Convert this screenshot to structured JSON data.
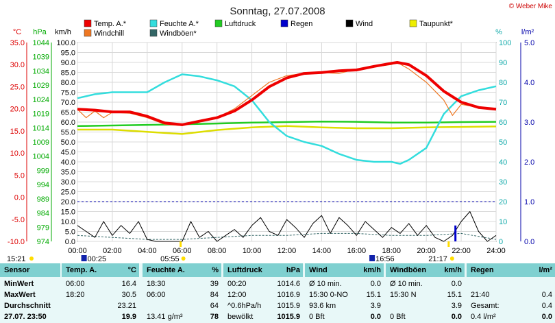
{
  "header": {
    "title": "Sonntag, 27.07.2008",
    "copyright": "© Weber Mike"
  },
  "legend": [
    {
      "label": "Temp. A.*",
      "color": "#ee0000"
    },
    {
      "label": "Feuchte A.*",
      "color": "#33dddd"
    },
    {
      "label": "Luftdruck",
      "color": "#22cc22"
    },
    {
      "label": "Regen",
      "color": "#0000cc"
    },
    {
      "label": "Wind",
      "color": "#000000"
    },
    {
      "label": "Taupunkt*",
      "color": "#eeee00"
    },
    {
      "label": "Windchill",
      "color": "#ee7722"
    },
    {
      "label": "Windböen*",
      "color": "#336666"
    }
  ],
  "axes": {
    "temp_unit": "°C",
    "press_unit": "hPa",
    "wind_unit": "km/h",
    "hum_unit": "%",
    "rain_unit": "l/m²",
    "temp_ticks": [
      "35.0",
      "30.0",
      "25.0",
      "20.0",
      "15.0",
      "10.0",
      "5.0",
      "0.0",
      "-5.0",
      "-10.0"
    ],
    "press_ticks": [
      "1044",
      "1039",
      "1034",
      "1029",
      "1024",
      "1019",
      "1014",
      "1009",
      "1004",
      "999",
      "994",
      "989",
      "984",
      "979",
      "974"
    ],
    "wind_ticks": [
      "100.0",
      "95.0",
      "90.0",
      "85.0",
      "80.0",
      "75.0",
      "70.0",
      "65.0",
      "60.0",
      "55.0",
      "50.0",
      "45.0",
      "40.0",
      "35.0",
      "30.0",
      "25.0",
      "20.0",
      "15.0",
      "10.0",
      "5.0",
      "0.0"
    ],
    "hum_ticks": [
      "100",
      "90",
      "80",
      "70",
      "60",
      "50",
      "40",
      "30",
      "20",
      "10",
      "0"
    ],
    "rain_ticks": [
      "5.0",
      "4.0",
      "3.0",
      "2.0",
      "1.0",
      "0.0"
    ],
    "time_ticks": [
      "00:00",
      "02:00",
      "04:00",
      "06:00",
      "08:00",
      "10:00",
      "12:00",
      "14:00",
      "16:00",
      "18:00",
      "20:00",
      "22:00",
      "24:00"
    ]
  },
  "sun": {
    "sunrise": "05:55",
    "sunset": "21:17",
    "moonset": "00:25",
    "moonrise": "16:56",
    "prev_sunset": "15:21"
  },
  "chart_data": {
    "type": "line",
    "x_unit": "hours",
    "xlim": [
      0,
      24
    ],
    "series": [
      {
        "name": "Temp. A.*",
        "axis": "temp",
        "ylim": [
          -10,
          35
        ],
        "x": [
          0,
          1,
          2,
          3,
          4,
          5,
          6,
          7,
          8,
          9,
          10,
          11,
          12,
          13,
          14,
          15,
          16,
          17,
          18,
          18.33,
          19,
          20,
          21,
          22,
          23,
          24
        ],
        "y": [
          19.9,
          19.7,
          19.3,
          19.3,
          18.3,
          16.8,
          16.4,
          17.2,
          18.0,
          19.5,
          22.0,
          25.0,
          27.0,
          28.0,
          28.2,
          28.6,
          28.8,
          29.6,
          30.3,
          30.5,
          30.0,
          27.5,
          24.0,
          21.5,
          20.3,
          19.9
        ]
      },
      {
        "name": "Windchill",
        "axis": "temp",
        "ylim": [
          -10,
          35
        ],
        "x": [
          0,
          0.5,
          1,
          1.5,
          2,
          3,
          4,
          5,
          6,
          7,
          8,
          9,
          10,
          11,
          12,
          13,
          14,
          15,
          16,
          17,
          18,
          18.33,
          19,
          20,
          21,
          21.5,
          22,
          23,
          24
        ],
        "y": [
          19.9,
          18.0,
          19.5,
          18.0,
          19.2,
          19.0,
          18.0,
          16.5,
          16.2,
          17.0,
          18.0,
          20.0,
          23.0,
          26.0,
          27.5,
          28.0,
          28.2,
          28.0,
          29.0,
          29.5,
          30.0,
          30.5,
          29.0,
          26.0,
          22.0,
          18.5,
          21.0,
          20.3,
          19.9
        ]
      },
      {
        "name": "Feuchte A.*",
        "axis": "hum",
        "ylim": [
          0,
          100
        ],
        "x": [
          0,
          1,
          2,
          3,
          4,
          5,
          6,
          7,
          8,
          9,
          10,
          11,
          12,
          13,
          14,
          15,
          16,
          17,
          18,
          18.5,
          19,
          20,
          21,
          22,
          23,
          24
        ],
        "y": [
          72,
          74,
          75,
          75,
          75,
          80,
          84,
          83,
          81,
          78,
          71,
          60,
          53,
          50,
          48,
          44,
          41,
          40,
          40,
          39,
          41,
          47,
          64,
          73,
          76,
          78
        ]
      },
      {
        "name": "Luftdruck",
        "axis": "press",
        "ylim": [
          974,
          1044
        ],
        "x": [
          0,
          2,
          4,
          6,
          8,
          10,
          12,
          14,
          16,
          18,
          20,
          22,
          24
        ],
        "y": [
          1014.6,
          1014.8,
          1015.0,
          1015.2,
          1015.5,
          1015.8,
          1016.0,
          1016.2,
          1016.1,
          1015.8,
          1015.8,
          1016.0,
          1016.1
        ]
      },
      {
        "name": "Taupunkt*",
        "axis": "temp",
        "ylim": [
          -10,
          35
        ],
        "x": [
          0,
          2,
          4,
          6,
          8,
          10,
          12,
          14,
          16,
          18,
          20,
          22,
          24
        ],
        "y": [
          15.3,
          15.3,
          14.8,
          14.3,
          15.2,
          15.8,
          16.1,
          15.8,
          15.6,
          15.6,
          15.8,
          15.9,
          16.0
        ]
      },
      {
        "name": "Wind",
        "axis": "wind",
        "ylim": [
          0,
          100
        ],
        "x": [
          0,
          0.5,
          1,
          1.5,
          2,
          2.5,
          3,
          3.5,
          4,
          4.5,
          5,
          5.5,
          6,
          6.5,
          7,
          7.5,
          8,
          8.5,
          9,
          9.5,
          10,
          10.5,
          11,
          11.5,
          12,
          12.5,
          13,
          13.5,
          14,
          14.5,
          15,
          15.5,
          16,
          16.5,
          17,
          17.5,
          18,
          18.5,
          19,
          19.5,
          20,
          20.5,
          21,
          21.5,
          22,
          22.5,
          23,
          23.5,
          24
        ],
        "y": [
          8,
          5,
          2,
          10,
          3,
          8,
          4,
          10,
          1,
          0,
          0,
          0,
          0,
          10,
          2,
          5,
          0,
          3,
          6,
          2,
          8,
          12,
          5,
          3,
          11,
          7,
          2,
          9,
          13,
          4,
          12,
          8,
          3,
          10,
          6,
          2,
          7,
          4,
          9,
          3,
          8,
          2,
          0,
          3,
          10,
          15,
          5,
          0,
          3
        ]
      },
      {
        "name": "Windböen*",
        "axis": "wind",
        "ylim": [
          0,
          100
        ],
        "x": [
          0,
          2,
          4,
          6,
          8,
          10,
          12,
          14,
          16,
          18,
          20,
          22,
          24
        ],
        "y": [
          3,
          2,
          1,
          1,
          2,
          3,
          3,
          4,
          4,
          3,
          3,
          4,
          1
        ]
      }
    ],
    "rain_bars": {
      "axis": "rain",
      "ylim": [
        0,
        5
      ],
      "x": [
        21.67
      ],
      "y": [
        0.4
      ]
    },
    "reference_line": {
      "axis": "rain",
      "y": 1.0,
      "style": "dashed"
    }
  },
  "stats": {
    "headers": [
      {
        "label": "Sensor",
        "unit": ""
      },
      {
        "label": "Temp. A.",
        "unit": "°C"
      },
      {
        "label": "Feuchte A.",
        "unit": "%"
      },
      {
        "label": "Luftdruck",
        "unit": "hPa"
      },
      {
        "label": "Wind",
        "unit": "km/h"
      },
      {
        "label": "Windböen",
        "unit": "km/h"
      },
      {
        "label": "Regen",
        "unit": "l/m²"
      }
    ],
    "row_labels": [
      "MinWert",
      "MaxWert",
      "Durchschnitt",
      "27.07. 23:50"
    ],
    "temp": [
      [
        "06:00",
        "16.4"
      ],
      [
        "18:20",
        "30.5"
      ],
      [
        "",
        "23.21"
      ],
      [
        "",
        "19.9"
      ]
    ],
    "hum": [
      [
        "18:30",
        "39"
      ],
      [
        "06:00",
        "84"
      ],
      [
        "",
        "64"
      ],
      [
        "13.41 g/m³",
        "78"
      ]
    ],
    "press": [
      [
        "00:20",
        "1014.6"
      ],
      [
        "12:00",
        "1016.9"
      ],
      [
        "^0.6hPa/h",
        "1015.9"
      ],
      [
        "bewölkt",
        "1015.9"
      ]
    ],
    "wind": [
      [
        "Ø 10 min.",
        "0.0"
      ],
      [
        "15:30  0-NO",
        "15.1"
      ],
      [
        "93.6 km",
        "3.9"
      ],
      [
        "0 Bft",
        "0.0"
      ]
    ],
    "gust": [
      [
        "Ø 10 min.",
        "0.0"
      ],
      [
        "15:30  N",
        "15.1"
      ],
      [
        "",
        "3.9"
      ],
      [
        "0 Bft",
        "0.0"
      ]
    ],
    "rain": [
      [
        "",
        ""
      ],
      [
        "21:40",
        "0.4"
      ],
      [
        "Gesamt:",
        "0.4"
      ],
      [
        "0.4 l/m²",
        "0.0"
      ]
    ]
  }
}
